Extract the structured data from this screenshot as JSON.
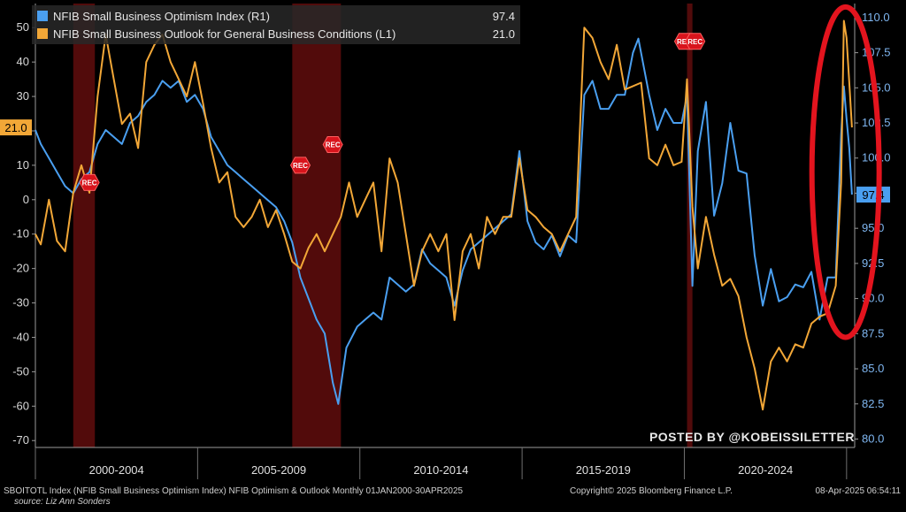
{
  "chart_data": {
    "type": "line",
    "x_start": "2000-01",
    "x_end": "2025-04",
    "x_frequency": "monthly",
    "left_axis": {
      "range": [
        -72,
        57
      ],
      "ticks": [
        -70,
        -60,
        -50,
        -40,
        -30,
        -20,
        -10,
        0,
        10,
        20,
        30,
        40,
        50
      ]
    },
    "right_axis": {
      "range": [
        79.4,
        111
      ],
      "ticks": [
        80.0,
        82.5,
        85.0,
        87.5,
        90.0,
        92.5,
        95.0,
        97.5,
        100.0,
        102.5,
        105.0,
        107.5,
        110.0
      ]
    },
    "period_labels": [
      "2000-2004",
      "2005-2009",
      "2010-2014",
      "2015-2019",
      "2020-2024"
    ],
    "recessions": [
      {
        "start": "2001-03",
        "end": "2001-11",
        "label": "REC"
      },
      {
        "start": "2007-12",
        "end": "2009-06",
        "label": "REC"
      },
      {
        "start": "2020-02",
        "end": "2020-04",
        "label": "REC"
      }
    ],
    "recession_labels": [
      "REC",
      "REC",
      "REC",
      "REC",
      "REC"
    ],
    "series": [
      {
        "name": "NFIB Small Business Optimism Index  (R1)",
        "axis": "right",
        "color": "#4a9ff0",
        "last_value": "97.4",
        "points": [
          [
            "2000-01",
            102.0
          ],
          [
            "2000-03",
            101.0
          ],
          [
            "2000-06",
            100.0
          ],
          [
            "2000-09",
            99.0
          ],
          [
            "2000-12",
            98.0
          ],
          [
            "2001-03",
            97.5
          ],
          [
            "2001-06",
            98.5
          ],
          [
            "2001-09",
            99.0
          ],
          [
            "2001-12",
            101.0
          ],
          [
            "2002-03",
            102.0
          ],
          [
            "2002-06",
            101.5
          ],
          [
            "2002-09",
            101.0
          ],
          [
            "2002-12",
            102.5
          ],
          [
            "2003-03",
            103.0
          ],
          [
            "2003-06",
            104.0
          ],
          [
            "2003-09",
            104.5
          ],
          [
            "2003-12",
            105.5
          ],
          [
            "2004-03",
            105.0
          ],
          [
            "2004-06",
            105.5
          ],
          [
            "2004-09",
            104.0
          ],
          [
            "2004-12",
            104.5
          ],
          [
            "2005-03",
            103.5
          ],
          [
            "2005-06",
            101.5
          ],
          [
            "2005-09",
            100.5
          ],
          [
            "2005-12",
            99.5
          ],
          [
            "2006-03",
            99.0
          ],
          [
            "2006-06",
            98.5
          ],
          [
            "2006-09",
            98.0
          ],
          [
            "2006-12",
            97.5
          ],
          [
            "2007-03",
            97.0
          ],
          [
            "2007-06",
            96.5
          ],
          [
            "2007-09",
            95.5
          ],
          [
            "2007-12",
            94.0
          ],
          [
            "2008-03",
            91.5
          ],
          [
            "2008-06",
            90.0
          ],
          [
            "2008-09",
            88.5
          ],
          [
            "2008-12",
            87.5
          ],
          [
            "2009-03",
            84.0
          ],
          [
            "2009-05",
            82.5
          ],
          [
            "2009-08",
            86.5
          ],
          [
            "2009-12",
            88.0
          ],
          [
            "2010-03",
            88.5
          ],
          [
            "2010-06",
            89.0
          ],
          [
            "2010-09",
            88.5
          ],
          [
            "2010-12",
            91.5
          ],
          [
            "2011-03",
            91.0
          ],
          [
            "2011-06",
            90.5
          ],
          [
            "2011-09",
            91.0
          ],
          [
            "2011-12",
            93.5
          ],
          [
            "2012-03",
            92.5
          ],
          [
            "2012-06",
            92.0
          ],
          [
            "2012-09",
            91.5
          ],
          [
            "2012-12",
            89.5
          ],
          [
            "2013-03",
            92.0
          ],
          [
            "2013-06",
            93.5
          ],
          [
            "2013-09",
            94.0
          ],
          [
            "2013-12",
            94.5
          ],
          [
            "2014-03",
            95.0
          ],
          [
            "2014-06",
            95.5
          ],
          [
            "2014-09",
            96.0
          ],
          [
            "2014-12",
            100.5
          ],
          [
            "2015-03",
            95.5
          ],
          [
            "2015-06",
            94.0
          ],
          [
            "2015-09",
            93.5
          ],
          [
            "2015-12",
            94.5
          ],
          [
            "2016-03",
            93.0
          ],
          [
            "2016-06",
            94.5
          ],
          [
            "2016-09",
            94.0
          ],
          [
            "2016-12",
            104.5
          ],
          [
            "2017-03",
            105.5
          ],
          [
            "2017-06",
            103.5
          ],
          [
            "2017-09",
            103.5
          ],
          [
            "2017-12",
            104.5
          ],
          [
            "2018-03",
            104.5
          ],
          [
            "2018-06",
            107.5
          ],
          [
            "2018-08",
            108.5
          ],
          [
            "2018-12",
            104.5
          ],
          [
            "2019-03",
            102.0
          ],
          [
            "2019-06",
            103.5
          ],
          [
            "2019-09",
            102.5
          ],
          [
            "2019-12",
            102.5
          ],
          [
            "2020-02",
            104.5
          ],
          [
            "2020-04",
            90.9
          ],
          [
            "2020-06",
            100.5
          ],
          [
            "2020-09",
            104.0
          ],
          [
            "2020-12",
            95.9
          ],
          [
            "2021-03",
            98.2
          ],
          [
            "2021-06",
            102.5
          ],
          [
            "2021-09",
            99.1
          ],
          [
            "2021-12",
            98.9
          ],
          [
            "2022-03",
            93.1
          ],
          [
            "2022-06",
            89.5
          ],
          [
            "2022-09",
            92.1
          ],
          [
            "2022-12",
            89.8
          ],
          [
            "2023-03",
            90.1
          ],
          [
            "2023-06",
            91.0
          ],
          [
            "2023-09",
            90.8
          ],
          [
            "2023-12",
            91.9
          ],
          [
            "2024-03",
            88.5
          ],
          [
            "2024-06",
            91.5
          ],
          [
            "2024-09",
            91.5
          ],
          [
            "2024-11",
            101.7
          ],
          [
            "2024-12",
            105.1
          ],
          [
            "2025-01",
            102.8
          ],
          [
            "2025-02",
            100.7
          ],
          [
            "2025-03",
            97.4
          ]
        ]
      },
      {
        "name": "NFIB Small Business Outlook for General Business Conditions (L1)",
        "axis": "left",
        "color": "#f2a737",
        "last_value": "21.0",
        "points": [
          [
            "2000-01",
            -10
          ],
          [
            "2000-03",
            -13
          ],
          [
            "2000-06",
            0
          ],
          [
            "2000-09",
            -12
          ],
          [
            "2000-12",
            -15
          ],
          [
            "2001-03",
            2
          ],
          [
            "2001-06",
            10
          ],
          [
            "2001-09",
            2
          ],
          [
            "2001-12",
            30
          ],
          [
            "2002-03",
            48
          ],
          [
            "2002-06",
            35
          ],
          [
            "2002-09",
            22
          ],
          [
            "2002-12",
            25
          ],
          [
            "2003-03",
            15
          ],
          [
            "2003-06",
            40
          ],
          [
            "2003-09",
            45
          ],
          [
            "2003-12",
            48
          ],
          [
            "2004-03",
            40
          ],
          [
            "2004-06",
            35
          ],
          [
            "2004-09",
            30
          ],
          [
            "2004-12",
            40
          ],
          [
            "2005-03",
            28
          ],
          [
            "2005-06",
            15
          ],
          [
            "2005-09",
            5
          ],
          [
            "2005-12",
            8
          ],
          [
            "2006-03",
            -5
          ],
          [
            "2006-06",
            -8
          ],
          [
            "2006-09",
            -5
          ],
          [
            "2006-12",
            0
          ],
          [
            "2007-03",
            -8
          ],
          [
            "2007-06",
            -3
          ],
          [
            "2007-09",
            -10
          ],
          [
            "2007-12",
            -18
          ],
          [
            "2008-03",
            -20
          ],
          [
            "2008-06",
            -14
          ],
          [
            "2008-09",
            -10
          ],
          [
            "2008-12",
            -15
          ],
          [
            "2009-03",
            -10
          ],
          [
            "2009-06",
            -5
          ],
          [
            "2009-09",
            5
          ],
          [
            "2009-12",
            -5
          ],
          [
            "2010-03",
            0
          ],
          [
            "2010-06",
            5
          ],
          [
            "2010-09",
            -15
          ],
          [
            "2010-12",
            12
          ],
          [
            "2011-03",
            5
          ],
          [
            "2011-06",
            -10
          ],
          [
            "2011-09",
            -25
          ],
          [
            "2011-12",
            -15
          ],
          [
            "2012-03",
            -10
          ],
          [
            "2012-06",
            -15
          ],
          [
            "2012-09",
            -10
          ],
          [
            "2012-12",
            -35
          ],
          [
            "2013-03",
            -15
          ],
          [
            "2013-06",
            -10
          ],
          [
            "2013-09",
            -20
          ],
          [
            "2013-12",
            -5
          ],
          [
            "2014-03",
            -10
          ],
          [
            "2014-06",
            -5
          ],
          [
            "2014-09",
            -5
          ],
          [
            "2014-12",
            12
          ],
          [
            "2015-03",
            -3
          ],
          [
            "2015-06",
            -5
          ],
          [
            "2015-09",
            -8
          ],
          [
            "2015-12",
            -10
          ],
          [
            "2016-03",
            -15
          ],
          [
            "2016-06",
            -10
          ],
          [
            "2016-09",
            -5
          ],
          [
            "2016-12",
            50
          ],
          [
            "2017-03",
            47
          ],
          [
            "2017-06",
            40
          ],
          [
            "2017-09",
            35
          ],
          [
            "2017-12",
            45
          ],
          [
            "2018-03",
            32
          ],
          [
            "2018-06",
            33
          ],
          [
            "2018-09",
            34
          ],
          [
            "2018-12",
            12
          ],
          [
            "2019-03",
            10
          ],
          [
            "2019-06",
            16
          ],
          [
            "2019-09",
            10
          ],
          [
            "2019-12",
            11
          ],
          [
            "2020-02",
            35
          ],
          [
            "2020-04",
            -2
          ],
          [
            "2020-06",
            -20
          ],
          [
            "2020-09",
            -5
          ],
          [
            "2020-12",
            -16
          ],
          [
            "2021-03",
            -25
          ],
          [
            "2021-06",
            -23
          ],
          [
            "2021-09",
            -28
          ],
          [
            "2021-12",
            -40
          ],
          [
            "2022-03",
            -49
          ],
          [
            "2022-06",
            -61
          ],
          [
            "2022-09",
            -47
          ],
          [
            "2022-12",
            -43
          ],
          [
            "2023-03",
            -47
          ],
          [
            "2023-06",
            -42
          ],
          [
            "2023-09",
            -43
          ],
          [
            "2023-12",
            -36
          ],
          [
            "2024-03",
            -34
          ],
          [
            "2024-06",
            -33
          ],
          [
            "2024-09",
            -25
          ],
          [
            "2024-11",
            5
          ],
          [
            "2024-12",
            52
          ],
          [
            "2025-01",
            47
          ],
          [
            "2025-02",
            34
          ],
          [
            "2025-03",
            21
          ]
        ]
      }
    ],
    "annotation": {
      "type": "ellipse",
      "color": "#e3141e"
    },
    "grid": false,
    "legend_placement": "top-left"
  },
  "footer": {
    "left": "SBOITOTL Index (NFIB Small Business Optimism Index) NFIB Optimism & Outlook  Monthly 01JAN2000-30APR2025",
    "source": "source: Liz Ann Sonders",
    "center": "Copyright© 2025 Bloomberg Finance L.P.",
    "right": "08-Apr-2025 06:54:11"
  },
  "watermark": "POSTED BY @KOBEISSILETTER"
}
